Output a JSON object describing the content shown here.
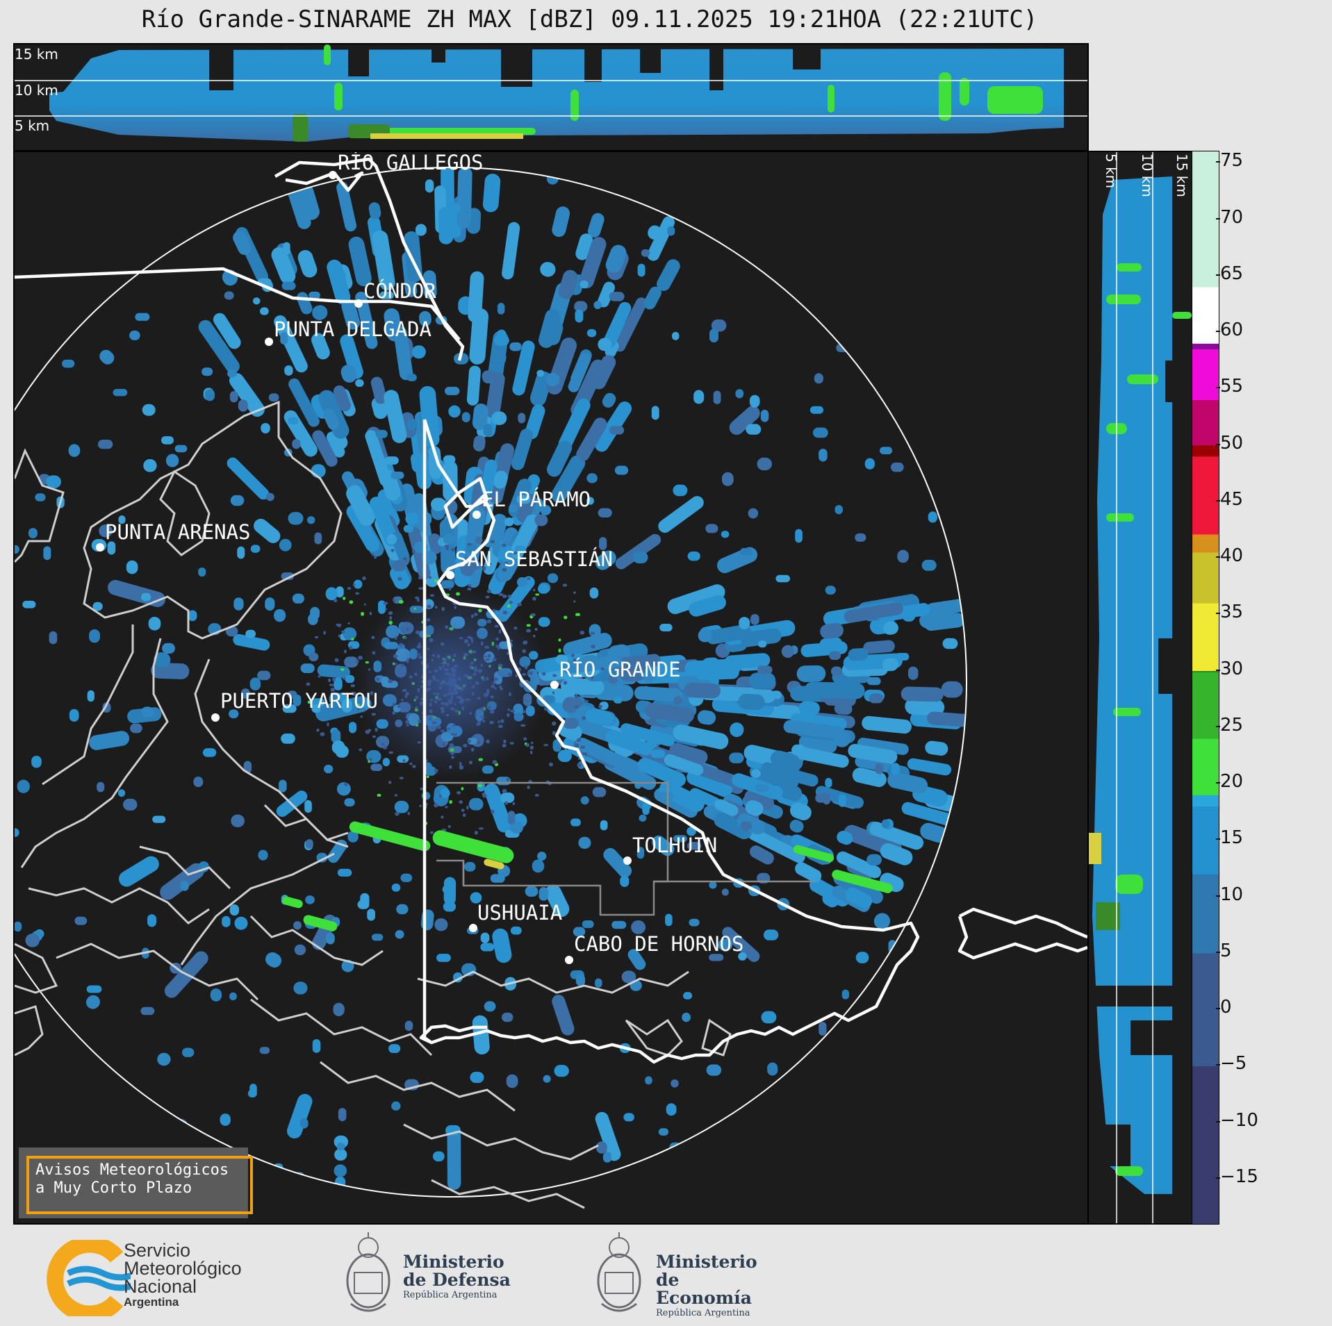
{
  "header": {
    "title": "Río Grande-SINARAME ZH MAX [dBZ] 09.11.2025 19:21HOA (22:21UTC)"
  },
  "top_panel": {
    "altitude_labels": [
      "15 km",
      "10 km",
      "5 km"
    ]
  },
  "side_panel": {
    "altitude_labels": [
      "5 km",
      "10 km",
      "15 km"
    ]
  },
  "map": {
    "cities": [
      {
        "name": "RÍO GALLEGOS"
      },
      {
        "name": "CÓNDOR"
      },
      {
        "name": "PUNTA DELGADA"
      },
      {
        "name": "EL PÁRAMO"
      },
      {
        "name": "PUNTA ARENAS"
      },
      {
        "name": "SAN SEBASTIÁN"
      },
      {
        "name": "RÍO GRANDE"
      },
      {
        "name": "PUERTO YARTOU"
      },
      {
        "name": "TOLHUIN"
      },
      {
        "name": "USHUAIA"
      },
      {
        "name": "CABO DE HORNOS"
      }
    ],
    "colors": {
      "coast": "#ffffff",
      "chile_coast": "#cfcfcf",
      "background": "#1c1c1c",
      "echo_main": "#2a8fc9"
    }
  },
  "colorbar": {
    "unit": "dBZ",
    "ticks": [
      "75",
      "70",
      "65",
      "60",
      "55",
      "50",
      "45",
      "40",
      "35",
      "30",
      "25",
      "20",
      "15",
      "10",
      "5",
      "0",
      "−5",
      "−10",
      "−15"
    ],
    "range": [
      -19,
      76
    ],
    "stops": [
      {
        "v": -19,
        "c": "#3a3c6e"
      },
      {
        "v": -5,
        "c": "#3b5a8f"
      },
      {
        "v": 5,
        "c": "#2f78b0"
      },
      {
        "v": 12,
        "c": "#2592d0"
      },
      {
        "v": 18,
        "c": "#2aa7dc"
      },
      {
        "v": 19,
        "c": "#3fe03a"
      },
      {
        "v": 24,
        "c": "#35b52c"
      },
      {
        "v": 29.9,
        "c": "#207a1f"
      },
      {
        "v": 30,
        "c": "#f0ea35"
      },
      {
        "v": 36,
        "c": "#c9c22c"
      },
      {
        "v": 40.5,
        "c": "#d8901c"
      },
      {
        "v": 42,
        "c": "#e8851a"
      },
      {
        "v": 42.1,
        "c": "#f0183a"
      },
      {
        "v": 49,
        "c": "#9a0000"
      },
      {
        "v": 50,
        "c": "#c0066a"
      },
      {
        "v": 54,
        "c": "#f00cd8"
      },
      {
        "v": 58.5,
        "c": "#8a0a9a"
      },
      {
        "v": 59,
        "c": "#ffffff"
      },
      {
        "v": 64,
        "c": "#c8f0dc"
      },
      {
        "v": 76,
        "c": "#7ad8b0"
      }
    ]
  },
  "alert_box": {
    "line1": "Avisos Meteorológicos",
    "line2": "a Muy Corto Plazo"
  },
  "footer": {
    "smn": {
      "line1": "Servicio",
      "line2": "Meteorológico",
      "line3": "Nacional",
      "line4": "Argentina",
      "accent": "#f4a81c",
      "wave": "#2196d3"
    },
    "defensa": {
      "line1": "Ministerio",
      "line2": "de Defensa",
      "line3": "República Argentina"
    },
    "economia": {
      "line1": "Ministerio",
      "line2": "de Economía",
      "line3": "República Argentina"
    }
  }
}
